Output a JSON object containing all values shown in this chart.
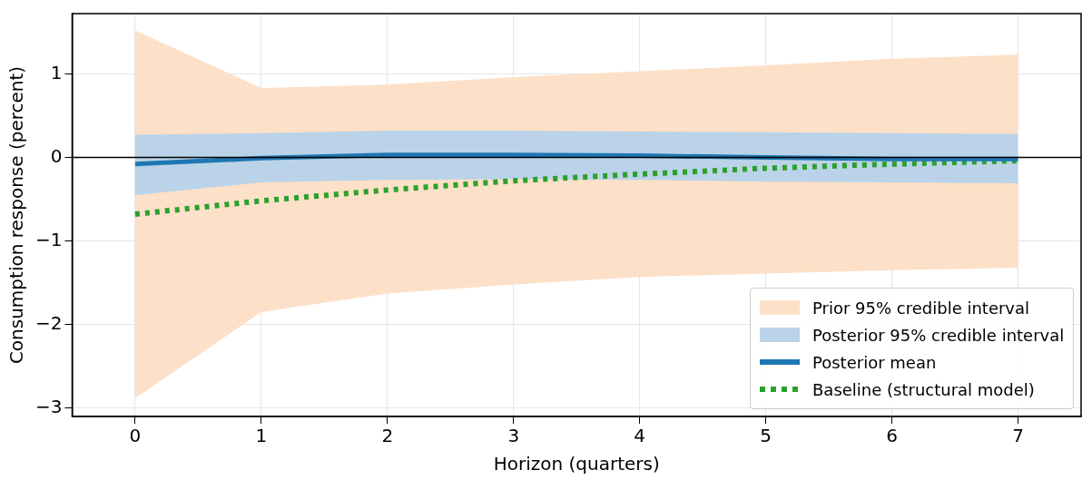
{
  "chart_data": {
    "type": "line",
    "xlabel": "Horizon (quarters)",
    "ylabel": "Consumption response (percent)",
    "x": [
      0,
      1,
      2,
      3,
      4,
      5,
      6,
      7
    ],
    "series": [
      {
        "name": "Prior 95% credible interval",
        "type": "area",
        "color": "#fde0c8",
        "values": [
          null,
          null,
          null,
          null,
          null,
          null,
          null,
          null
        ],
        "lower": [
          -2.88,
          -1.85,
          -1.63,
          -1.52,
          -1.43,
          -1.39,
          -1.35,
          -1.32
        ],
        "upper": [
          1.52,
          0.83,
          0.87,
          0.96,
          1.03,
          1.1,
          1.18,
          1.23
        ]
      },
      {
        "name": "Posterior 95% credible interval",
        "type": "area",
        "color": "#bad3e8",
        "values": [
          null,
          null,
          null,
          null,
          null,
          null,
          null,
          null
        ],
        "lower": [
          -0.45,
          -0.3,
          -0.27,
          -0.26,
          -0.27,
          -0.29,
          -0.3,
          -0.31
        ],
        "upper": [
          0.27,
          0.29,
          0.32,
          0.32,
          0.31,
          0.3,
          0.29,
          0.28
        ]
      },
      {
        "name": "Posterior mean",
        "color": "#1f77b4",
        "line_style": "solid",
        "values": [
          -0.08,
          -0.01,
          0.03,
          0.03,
          0.02,
          0.0,
          -0.02,
          -0.02
        ]
      },
      {
        "name": "Baseline (structural model)",
        "color": "#2ca02c",
        "line_style": "dotted",
        "values": [
          -0.68,
          -0.52,
          -0.39,
          -0.28,
          -0.2,
          -0.13,
          -0.08,
          -0.04
        ]
      }
    ],
    "xlim": [
      -0.5,
      7.5
    ],
    "xticks": [
      0,
      1,
      2,
      3,
      4,
      5,
      6,
      7
    ],
    "ylim": [
      -3.1,
      1.72
    ],
    "yticks": [
      {
        "value": -3,
        "label": "−3"
      },
      {
        "value": -2,
        "label": "−2"
      },
      {
        "value": -1,
        "label": "−1"
      },
      0,
      1
    ],
    "ref_lines": [
      {
        "axis": "y",
        "value": 0,
        "color": "#000000"
      }
    ],
    "grid": true,
    "legend": "bottom right",
    "marker": "none"
  }
}
